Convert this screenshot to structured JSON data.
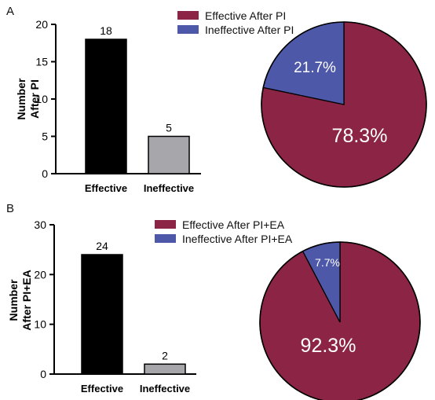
{
  "chart_data": [
    {
      "panel": "A",
      "type": "bar",
      "ylabel": "Number After PI",
      "ylabel_lines": [
        "Number",
        "After PI"
      ],
      "categories": [
        "Effective",
        "Ineffective"
      ],
      "values": [
        18,
        5
      ],
      "data_labels": [
        "18",
        "5"
      ],
      "ylim": [
        0,
        20
      ],
      "yticks": [
        0,
        5,
        10,
        15,
        20
      ],
      "ytick_labels": [
        "0",
        "5",
        "10",
        "15",
        "20"
      ],
      "bar_colors": [
        "#000000",
        "#a6a6ab"
      ],
      "grid": false
    },
    {
      "panel": "A",
      "type": "pie",
      "legend_position": "top",
      "slices": [
        {
          "name": "Effective After PI",
          "value": 78.3,
          "label": "78.3%",
          "color": "#8b2445"
        },
        {
          "name": "Ineffective After PI",
          "value": 21.7,
          "label": "21.7%",
          "color": "#4d58a8"
        }
      ]
    },
    {
      "panel": "B",
      "type": "bar",
      "ylabel": "Number After PI+EA",
      "ylabel_lines": [
        "Number",
        "After PI+EA"
      ],
      "categories": [
        "Effective",
        "Ineffective"
      ],
      "values": [
        24,
        2
      ],
      "data_labels": [
        "24",
        "2"
      ],
      "ylim": [
        0,
        30
      ],
      "yticks": [
        0,
        10,
        20,
        30
      ],
      "ytick_labels": [
        "0",
        "10",
        "20",
        "30"
      ],
      "bar_colors": [
        "#000000",
        "#a6a6ab"
      ],
      "grid": false
    },
    {
      "panel": "B",
      "type": "pie",
      "legend_position": "top",
      "slices": [
        {
          "name": "Effective After PI+EA",
          "value": 92.3,
          "label": "92.3%",
          "color": "#8b2445"
        },
        {
          "name": "Ineffective After PI+EA",
          "value": 7.7,
          "label": "7.7%",
          "color": "#4d58a8"
        }
      ]
    }
  ]
}
